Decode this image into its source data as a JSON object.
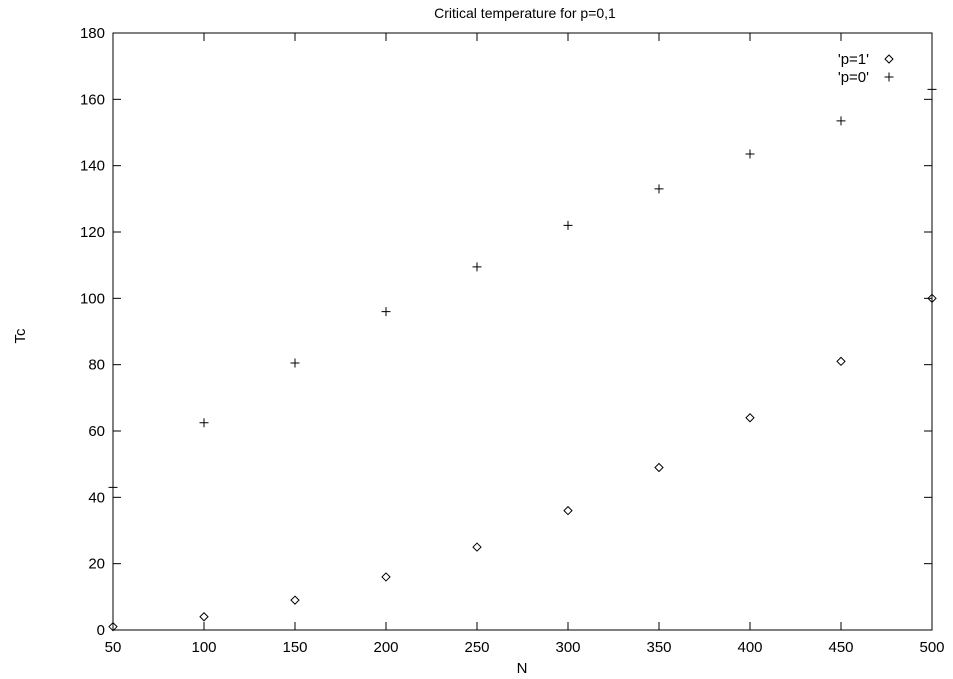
{
  "chart_data": {
    "type": "scatter",
    "title": "Critical temperature for p=0,1",
    "xlabel": "N",
    "ylabel": "Tc",
    "xlim": [
      50,
      500
    ],
    "ylim": [
      0,
      180
    ],
    "xticks": [
      50,
      100,
      150,
      200,
      250,
      300,
      350,
      400,
      450,
      500
    ],
    "yticks": [
      0,
      20,
      40,
      60,
      80,
      100,
      120,
      140,
      160,
      180
    ],
    "grid": false,
    "legend_position": "top-right",
    "series": [
      {
        "name": "'p=1'",
        "marker": "diamond",
        "x": [
          50,
          100,
          150,
          200,
          250,
          300,
          350,
          400,
          450,
          500
        ],
        "y": [
          1,
          4,
          9,
          16,
          25,
          36,
          49,
          64,
          81,
          100
        ]
      },
      {
        "name": "'p=0'",
        "marker": "plus",
        "x": [
          50,
          100,
          150,
          200,
          250,
          300,
          350,
          400,
          450,
          500
        ],
        "y": [
          43,
          62.5,
          80.5,
          96,
          109.5,
          122,
          133,
          143.5,
          153.5,
          163
        ]
      }
    ]
  }
}
